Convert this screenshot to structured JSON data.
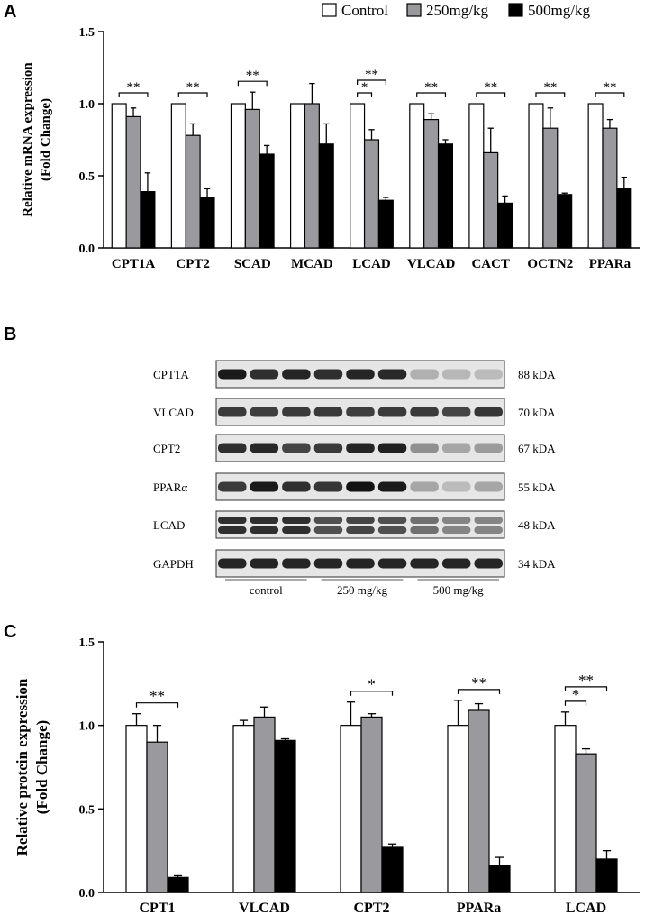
{
  "panels": {
    "a": "A",
    "b": "B",
    "c": "C"
  },
  "legend": [
    "Control",
    "250mg/kg",
    "500mg/kg"
  ],
  "colors": {
    "control": "#ffffff",
    "dose250": "#9a9a9e",
    "dose500": "#000000",
    "outline": "#000000"
  },
  "chart_data": [
    {
      "type": "bar",
      "panel": "A",
      "ylabel_line1": "Relative mRNA expression",
      "ylabel_line2": "(Fold Change)",
      "ylim": [
        0,
        1.5
      ],
      "yticks": [
        "0.0",
        "0.5",
        "1.0",
        "1.5"
      ],
      "categories": [
        "CPT1A",
        "CPT2",
        "SCAD",
        "MCAD",
        "LCAD",
        "VLCAD",
        "CACT",
        "OCTN2",
        "PPARa"
      ],
      "series": [
        {
          "name": "Control",
          "values": [
            1.0,
            1.0,
            1.0,
            1.0,
            1.0,
            1.0,
            1.0,
            1.0,
            1.0
          ],
          "errors": [
            0,
            0,
            0,
            0,
            0,
            0,
            0,
            0,
            0
          ]
        },
        {
          "name": "250mg/kg",
          "values": [
            0.91,
            0.78,
            0.96,
            1.0,
            0.75,
            0.89,
            0.66,
            0.83,
            0.83
          ],
          "errors": [
            0.06,
            0.08,
            0.12,
            0.14,
            0.07,
            0.04,
            0.17,
            0.14,
            0.06
          ]
        },
        {
          "name": "500mg/kg",
          "values": [
            0.39,
            0.35,
            0.65,
            0.72,
            0.33,
            0.72,
            0.31,
            0.37,
            0.41
          ],
          "errors": [
            0.13,
            0.06,
            0.06,
            0.14,
            0.02,
            0.03,
            0.05,
            0.01,
            0.08
          ]
        }
      ],
      "annotations": [
        {
          "cat": 0,
          "from": 0,
          "to": 2,
          "text": "**",
          "level": 0
        },
        {
          "cat": 1,
          "from": 0,
          "to": 2,
          "text": "**",
          "level": 0
        },
        {
          "cat": 2,
          "from": 0,
          "to": 2,
          "text": "**",
          "level": 0
        },
        {
          "cat": 4,
          "from": 0,
          "to": 1,
          "text": "*",
          "level": 0
        },
        {
          "cat": 4,
          "from": 0,
          "to": 2,
          "text": "**",
          "level": 1
        },
        {
          "cat": 5,
          "from": 0,
          "to": 2,
          "text": "**",
          "level": 0
        },
        {
          "cat": 6,
          "from": 0,
          "to": 2,
          "text": "**",
          "level": 0
        },
        {
          "cat": 7,
          "from": 0,
          "to": 2,
          "text": "**",
          "level": 0
        },
        {
          "cat": 8,
          "from": 0,
          "to": 2,
          "text": "**",
          "level": 0
        }
      ]
    },
    {
      "type": "bar",
      "panel": "C",
      "ylabel_line1": "Relative protein expression",
      "ylabel_line2": "(Fold Change)",
      "ylim": [
        0,
        1.5
      ],
      "yticks": [
        "0.0",
        "0.5",
        "1.0",
        "1.5"
      ],
      "categories": [
        "CPT1",
        "VLCAD",
        "CPT2",
        "PPARa",
        "LCAD"
      ],
      "series": [
        {
          "name": "Control",
          "values": [
            1.0,
            1.0,
            1.0,
            1.0,
            1.0
          ],
          "errors": [
            0.07,
            0.03,
            0.14,
            0.15,
            0.08
          ]
        },
        {
          "name": "250mg/kg",
          "values": [
            0.9,
            1.05,
            1.05,
            1.09,
            0.83
          ],
          "errors": [
            0.1,
            0.06,
            0.02,
            0.04,
            0.03
          ]
        },
        {
          "name": "500mg/kg",
          "values": [
            0.09,
            0.91,
            0.27,
            0.16,
            0.2
          ],
          "errors": [
            0.01,
            0.01,
            0.02,
            0.05,
            0.05
          ]
        }
      ],
      "annotations": [
        {
          "cat": 0,
          "from": 0,
          "to": 2,
          "text": "**",
          "level": 0
        },
        {
          "cat": 2,
          "from": 0,
          "to": 2,
          "text": "*",
          "level": 0
        },
        {
          "cat": 3,
          "from": 0,
          "to": 2,
          "text": "**",
          "level": 0
        },
        {
          "cat": 4,
          "from": 0,
          "to": 1,
          "text": "*",
          "level": 0
        },
        {
          "cat": 4,
          "from": 0,
          "to": 2,
          "text": "**",
          "level": 1
        }
      ]
    }
  ],
  "blot": {
    "rows": [
      {
        "label": "CPT1A",
        "kda": "88 kDA",
        "intensity": [
          0.95,
          0.85,
          0.9,
          0.85,
          0.9,
          0.88,
          0.25,
          0.22,
          0.2
        ]
      },
      {
        "label": "VLCAD",
        "kda": "70 kDA",
        "intensity": [
          0.8,
          0.78,
          0.8,
          0.8,
          0.78,
          0.8,
          0.8,
          0.75,
          0.82
        ]
      },
      {
        "label": "CPT2",
        "kda": "67 kDA",
        "intensity": [
          0.85,
          0.88,
          0.75,
          0.8,
          0.9,
          0.92,
          0.4,
          0.3,
          0.35
        ]
      },
      {
        "label": "PPARα",
        "kda": "55 kDA",
        "intensity": [
          0.8,
          0.95,
          0.85,
          0.82,
          0.98,
          0.95,
          0.3,
          0.2,
          0.3
        ]
      },
      {
        "label": "LCAD",
        "kda": "48 kDA",
        "intensity": [
          0.85,
          0.85,
          0.85,
          0.7,
          0.75,
          0.7,
          0.55,
          0.45,
          0.45
        ]
      },
      {
        "label": "GAPDH",
        "kda": "34 kDA",
        "intensity": [
          0.9,
          0.9,
          0.9,
          0.9,
          0.9,
          0.9,
          0.9,
          0.9,
          0.9
        ]
      }
    ],
    "groups": [
      "control",
      "250 mg/kg",
      "500 mg/kg"
    ]
  }
}
